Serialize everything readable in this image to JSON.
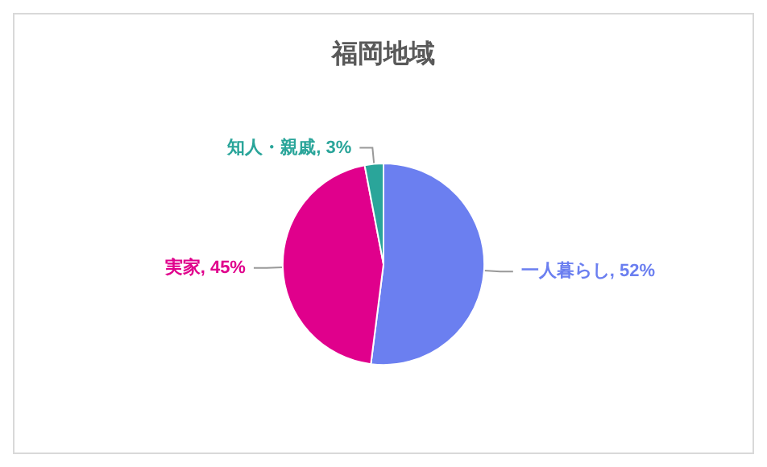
{
  "chart_data": {
    "type": "pie",
    "title": "福岡地域",
    "categories": [
      "一人暮らし",
      "実家",
      "知人・親戚"
    ],
    "values": [
      52,
      45,
      3
    ],
    "value_labels": [
      "52%",
      "45%",
      "3%"
    ],
    "colors": [
      "#6b7ff0",
      "#e0008c",
      "#2aa59a"
    ],
    "legend": false
  }
}
